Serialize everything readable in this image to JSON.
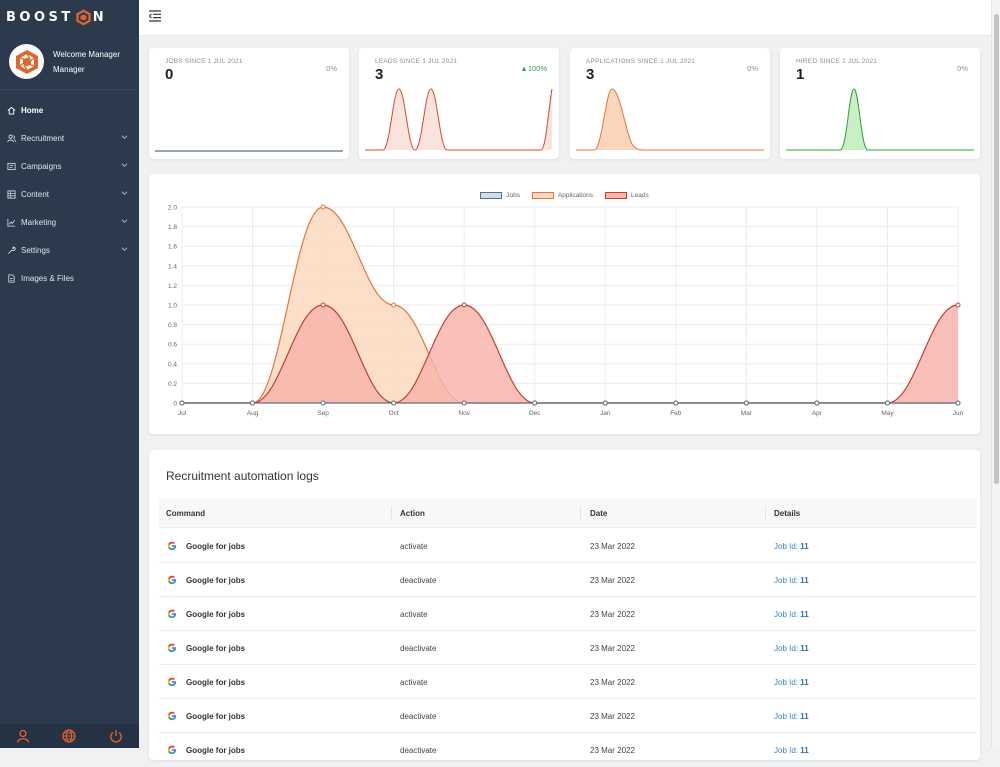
{
  "brand": {
    "logo_text_left": "BOOST",
    "logo_text_right": "N"
  },
  "user": {
    "line1": "Welcome Manager",
    "line2": "Manager"
  },
  "nav": [
    {
      "label": "Home",
      "icon": "home-icon",
      "active": true,
      "submenu": false
    },
    {
      "label": "Recruitment",
      "icon": "people-icon",
      "submenu": true
    },
    {
      "label": "Campaigns",
      "icon": "campaign-icon",
      "submenu": true
    },
    {
      "label": "Content",
      "icon": "content-icon",
      "submenu": true
    },
    {
      "label": "Marketing",
      "icon": "chart-icon",
      "submenu": true
    },
    {
      "label": "Settings",
      "icon": "wrench-icon",
      "submenu": true
    },
    {
      "label": "Images & Files",
      "icon": "file-icon",
      "submenu": false
    }
  ],
  "stats": [
    {
      "label": "JOBS SINCE 1 JUL 2021",
      "value": "0",
      "change": "0%",
      "trend": "flat",
      "color": "#2f4a6b"
    },
    {
      "label": "LEADS SINCE 1 JUL 2021",
      "value": "3",
      "change": "100%",
      "trend": "up",
      "color": "#d9482b"
    },
    {
      "label": "APPLICATIONS SINCE 1 JUL 2021",
      "value": "3",
      "change": "0%",
      "trend": "flat",
      "color": "#e8733f"
    },
    {
      "label": "HIRED SINCE 1 JUL 2021",
      "value": "1",
      "change": "0%",
      "trend": "flat",
      "color": "#2e9e3a"
    }
  ],
  "chart_data": {
    "type": "area",
    "categories": [
      "Jul",
      "Aug",
      "Sep",
      "Oct",
      "Nov",
      "Dec",
      "Jan",
      "Feb",
      "Mar",
      "Apr",
      "May",
      "Jun"
    ],
    "series": [
      {
        "name": "Jobs",
        "values": [
          0,
          0,
          0,
          0,
          0,
          0,
          0,
          0,
          0,
          0,
          0,
          0
        ],
        "stroke": "#5c6f85",
        "fill": "#d3dde8"
      },
      {
        "name": "Applications",
        "values": [
          0,
          0,
          2,
          1,
          0,
          0,
          0,
          0,
          0,
          0,
          0,
          0
        ],
        "stroke": "#e8733f",
        "fill": "#fbd9be"
      },
      {
        "name": "Leads",
        "values": [
          0,
          0,
          1,
          0,
          1,
          0,
          0,
          0,
          0,
          0,
          0,
          1
        ],
        "stroke": "#c8402c",
        "fill": "#f7b5ab"
      }
    ],
    "yticks": [
      "0",
      "0.2",
      "0.4",
      "0.6",
      "0.8",
      "1.0",
      "1.2",
      "1.4",
      "1.6",
      "1.8",
      "2.0"
    ],
    "ylim": [
      0,
      2
    ],
    "grid": true,
    "legend_position": "top"
  },
  "logs": {
    "title": "Recruitment automation logs",
    "columns": [
      "Command",
      "Action",
      "Date",
      "Details"
    ],
    "rows": [
      {
        "command": "Google for jobs",
        "action": "activate",
        "date": "23 Mar 2022",
        "detail_label": "Job Id:",
        "detail_value": "11"
      },
      {
        "command": "Google for jobs",
        "action": "deactivate",
        "date": "23 Mar 2022",
        "detail_label": "Job Id:",
        "detail_value": "11"
      },
      {
        "command": "Google for jobs",
        "action": "activate",
        "date": "23 Mar 2022",
        "detail_label": "Job Id:",
        "detail_value": "11"
      },
      {
        "command": "Google for jobs",
        "action": "deactivate",
        "date": "23 Mar 2022",
        "detail_label": "Job Id:",
        "detail_value": "11"
      },
      {
        "command": "Google for jobs",
        "action": "activate",
        "date": "23 Mar 2022",
        "detail_label": "Job Id:",
        "detail_value": "11"
      },
      {
        "command": "Google for jobs",
        "action": "deactivate",
        "date": "23 Mar 2022",
        "detail_label": "Job Id:",
        "detail_value": "11"
      },
      {
        "command": "Google for jobs",
        "action": "deactivate",
        "date": "23 Mar 2022",
        "detail_label": "Job Id:",
        "detail_value": "11"
      }
    ]
  },
  "footer_icons": [
    "user-icon",
    "globe-icon",
    "power-icon"
  ]
}
